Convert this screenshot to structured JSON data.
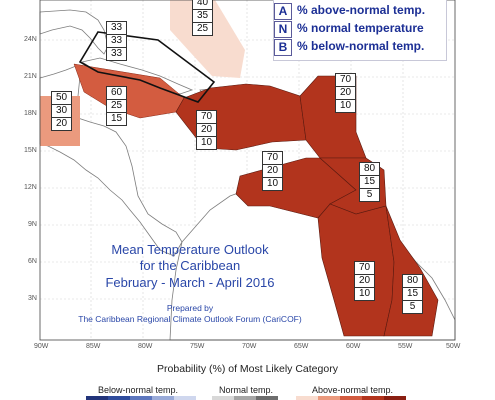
{
  "legend": {
    "items": [
      {
        "letter": "A",
        "text": "% above-normal temp."
      },
      {
        "letter": "N",
        "text": "% normal temperature"
      },
      {
        "letter": "B",
        "text": "% below-normal temp."
      }
    ]
  },
  "map": {
    "lat_labels": [
      "24N",
      "21N",
      "18N",
      "15N",
      "12N",
      "9N",
      "6N",
      "3N"
    ],
    "lon_labels": [
      "90W",
      "85W",
      "80W",
      "75W",
      "70W",
      "65W",
      "60W",
      "55W",
      "50W"
    ],
    "colors": {
      "ocean": "#ffffff",
      "land": "#ffffff",
      "coast": "#8a8a8a",
      "above_strong": "#b2341d",
      "above_medium": "#d35c40",
      "above_light": "#eb9a7e",
      "above_faint": "#f8dccf",
      "grid": "#c8c8c8"
    }
  },
  "regions": [
    {
      "name": "bahamas-north",
      "A": "40",
      "N": "35",
      "B": "25",
      "color": "above_faint"
    },
    {
      "name": "bahamas-cuba-box",
      "A": "33",
      "N": "33",
      "B": "33",
      "color": "none"
    },
    {
      "name": "belize-honduras",
      "A": "50",
      "N": "30",
      "B": "20",
      "color": "above_light"
    },
    {
      "name": "cuba-jamaica",
      "A": "60",
      "N": "25",
      "B": "15",
      "color": "above_medium"
    },
    {
      "name": "hispaniola",
      "A": "70",
      "N": "20",
      "B": "10",
      "color": "above_strong"
    },
    {
      "name": "eastern-caribbean-north",
      "A": "70",
      "N": "20",
      "B": "10",
      "color": "above_strong"
    },
    {
      "name": "southern-caribbean-abc",
      "A": "70",
      "N": "20",
      "B": "10",
      "color": "above_strong"
    },
    {
      "name": "windward-islands",
      "A": "80",
      "N": "15",
      "B": "5",
      "color": "above_strong"
    },
    {
      "name": "guyana",
      "A": "70",
      "N": "20",
      "B": "10",
      "color": "above_strong"
    },
    {
      "name": "suriname-french-guiana",
      "A": "80",
      "N": "15",
      "B": "5",
      "color": "above_strong"
    }
  ],
  "title": {
    "line1": "Mean Temperature Outlook",
    "line2": "for the Caribbean",
    "line3": "February - March - April 2016"
  },
  "credit": {
    "line1": "Prepared by",
    "line2": "The Caribbean Regional Climate Outlook Forum (CariCOF)"
  },
  "colorbar": {
    "title": "Probability (%) of Most Likely Category",
    "below_label": "Below-normal temp.",
    "normal_label": "Normal temp.",
    "above_label": "Above-normal temp.",
    "below_color": "#2a3f8c",
    "normal_color": "#9a9a9a",
    "above_color": "#a32a1c"
  }
}
